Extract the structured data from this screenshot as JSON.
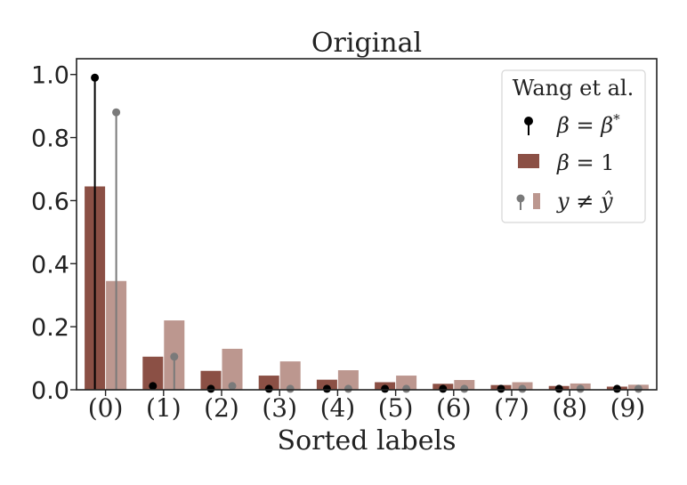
{
  "chart_data": {
    "type": "bar",
    "title": "Original",
    "xlabel": "Sorted labels",
    "ylabel": "",
    "ylim": [
      0,
      1.05
    ],
    "yticks": [
      0.0,
      0.2,
      0.4,
      0.6,
      0.8,
      1.0
    ],
    "ytick_labels": [
      "0.0",
      "0.2",
      "0.4",
      "0.6",
      "0.8",
      "1.0"
    ],
    "categories": [
      "(0)",
      "(1)",
      "(2)",
      "(3)",
      "(4)",
      "(5)",
      "(6)",
      "(7)",
      "(8)",
      "(9)"
    ],
    "legend": {
      "title": "Wang et al.",
      "position": "top-right",
      "entries": [
        {
          "symbol": "stem",
          "label_parts": [
            "β",
            " = ",
            "β",
            "*"
          ]
        },
        {
          "symbol": "bar",
          "label_parts": [
            "β",
            " = 1"
          ]
        },
        {
          "symbol": "stem+bar",
          "label_parts": [
            "y",
            " ≠ ",
            "ŷ"
          ]
        }
      ]
    },
    "series": [
      {
        "kind": "bar",
        "role": "β = 1",
        "color": "#8B5045",
        "values": [
          0.645,
          0.105,
          0.06,
          0.045,
          0.032,
          0.024,
          0.019,
          0.015,
          0.012,
          0.01
        ]
      },
      {
        "kind": "bar",
        "role": "y ≠ ŷ",
        "color": "#BC978F",
        "values": [
          0.345,
          0.22,
          0.13,
          0.09,
          0.062,
          0.045,
          0.031,
          0.024,
          0.02,
          0.016
        ]
      },
      {
        "kind": "stem",
        "role": "β = β*",
        "color": "#000000",
        "values": [
          0.99,
          0.012,
          0.003,
          0.003,
          0.003,
          0.003,
          0.003,
          0.003,
          0.003,
          0.003
        ]
      },
      {
        "kind": "stem",
        "role": "y ≠ ŷ",
        "color": "#7a7a7a",
        "values": [
          0.88,
          0.105,
          0.012,
          0.003,
          0.003,
          0.003,
          0.003,
          0.003,
          0.003,
          0.003
        ]
      }
    ]
  }
}
